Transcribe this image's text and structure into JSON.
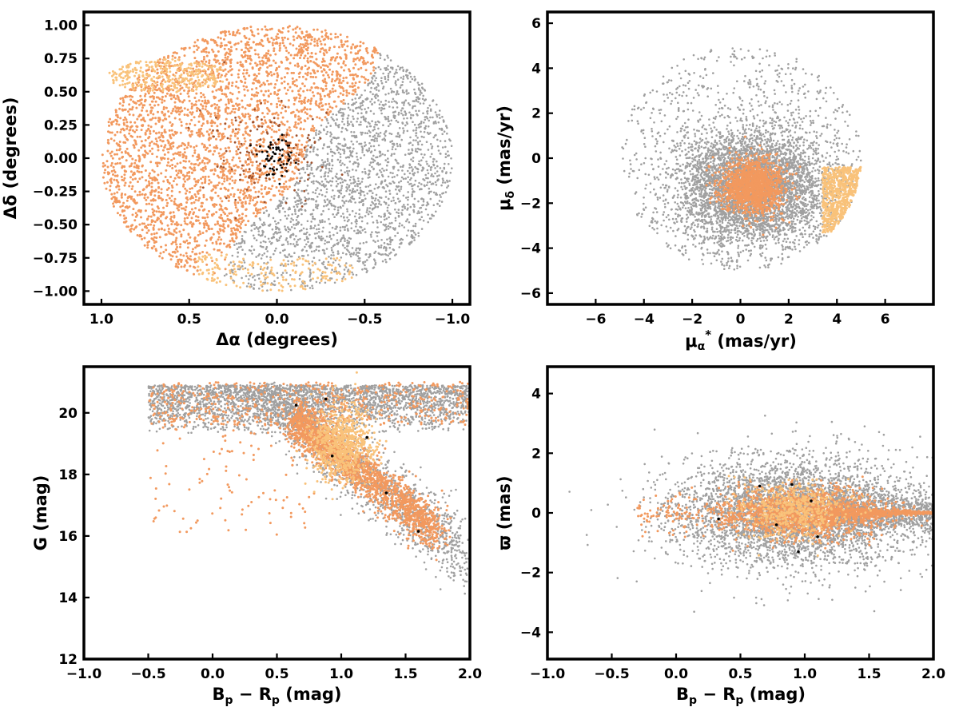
{
  "colors": {
    "field": "#a0a0a0",
    "orange": "#f2995e",
    "light_orange": "#f9c27a",
    "brown": "#a0522d",
    "black": "#000000",
    "frame": "#000000"
  },
  "chart_data": [
    {
      "id": "sky",
      "type": "scatter",
      "xlabel": "Δα (degrees)",
      "ylabel": "Δδ (degrees)",
      "xlim": [
        1.1,
        -1.1
      ],
      "ylim": [
        -1.1,
        1.1
      ],
      "xticks": [
        1.0,
        0.5,
        0.0,
        -0.5,
        -1.0
      ],
      "xtick_labels": [
        "1.0",
        "0.5",
        "0.0",
        "−0.5",
        "−1.0"
      ],
      "yticks": [
        -1.0,
        -0.75,
        -0.5,
        -0.25,
        0.0,
        0.25,
        0.5,
        0.75,
        1.0
      ],
      "ytick_labels": [
        "−1.00",
        "−0.75",
        "−0.50",
        "−0.25",
        "0.00",
        "0.25",
        "0.50",
        "0.75",
        "1.00"
      ],
      "grid": false,
      "field_region": {
        "shape": "ellipse",
        "center": [
          0.0,
          0.0
        ],
        "radius_x": 1.0,
        "radius_y": 1.0
      },
      "groups": [
        {
          "role": "orange",
          "region": "western and southern part of the field",
          "count_hint": "many"
        },
        {
          "role": "light_orange",
          "region": "southern rim near Δδ ≈ −0.9",
          "count_hint": "many"
        },
        {
          "role": "brown",
          "region": "filaments around the centre",
          "count_hint": "few"
        },
        {
          "role": "black",
          "region": "centre, |Δα| < 0.1, |Δδ| < 0.15",
          "count_hint": "~60"
        }
      ]
    },
    {
      "id": "proper-motion",
      "type": "scatter",
      "xlabel": "μα* (mas/yr)",
      "ylabel": "μδ (mas/yr)",
      "xlim": [
        -8,
        8
      ],
      "ylim": [
        -6.5,
        6.5
      ],
      "xticks": [
        -6,
        -4,
        -2,
        0,
        2,
        4,
        6
      ],
      "xtick_labels": [
        "−6",
        "−4",
        "−2",
        "0",
        "2",
        "4",
        "6"
      ],
      "yticks": [
        -6,
        -4,
        -2,
        0,
        2,
        4,
        6
      ],
      "ytick_labels": [
        "−6",
        "−4",
        "−2",
        "0",
        "2",
        "4",
        "6"
      ],
      "grid": false,
      "field_region": {
        "shape": "circle",
        "center": [
          0.0,
          0.0
        ],
        "radius": 5.0
      },
      "groups": [
        {
          "role": "field",
          "center": [
            0.5,
            -1.3
          ],
          "spread": [
            1.5,
            1.3
          ]
        },
        {
          "role": "orange",
          "center": [
            0.5,
            -1.3
          ],
          "spread": [
            0.65,
            0.6
          ]
        },
        {
          "role": "light_orange",
          "region": "right edge, μα* ≈ 4–5, μδ ≈ −3 to −0.5"
        }
      ]
    },
    {
      "id": "cmd",
      "type": "scatter",
      "xlabel": "Bp − Rp (mag)",
      "ylabel": "G (mag)",
      "xlim": [
        -1.0,
        2.0
      ],
      "ylim": [
        12.0,
        21.5
      ],
      "xticks": [
        -1.0,
        -0.5,
        0.0,
        0.5,
        1.0,
        1.5,
        2.0
      ],
      "xtick_labels": [
        "−1.0",
        "−0.5",
        "0.0",
        "0.5",
        "1.0",
        "1.5",
        "2.0"
      ],
      "yticks": [
        12,
        14,
        16,
        18,
        20
      ],
      "ytick_labels": [
        "12",
        "14",
        "16",
        "18",
        "20"
      ],
      "grid": false,
      "groups": [
        {
          "role": "field",
          "region": "faint band G ≈ 19.5–21 plus main sequence"
        },
        {
          "role": "orange",
          "region": "main sequence from (0.6, 19.8) to (1.7, 16.3)"
        },
        {
          "role": "light_orange",
          "region": "clump near Bp−Rp ≈ 1.0, G ≈ 19"
        },
        {
          "role": "black",
          "points": [
            [
              0.65,
              20.25
            ],
            [
              0.88,
              20.45
            ],
            [
              0.93,
              18.6
            ],
            [
              1.35,
              17.4
            ],
            [
              1.6,
              16.15
            ],
            [
              1.2,
              19.2
            ]
          ]
        }
      ]
    },
    {
      "id": "parallax",
      "type": "scatter",
      "xlabel": "Bp − Rp (mag)",
      "ylabel": "ϖ (mas)",
      "xlim": [
        -1.0,
        2.0
      ],
      "ylim": [
        -4.9,
        4.9
      ],
      "xticks": [
        -1.0,
        -0.5,
        0.0,
        0.5,
        1.0,
        1.5,
        2.0
      ],
      "xtick_labels": [
        "−1.0",
        "−0.5",
        "0.0",
        "0.5",
        "1.0",
        "1.5",
        "2.0"
      ],
      "yticks": [
        -4,
        -2,
        0,
        2,
        4
      ],
      "ytick_labels": [
        "−4",
        "−2",
        "0",
        "2",
        "4"
      ],
      "grid": false,
      "groups": [
        {
          "role": "field",
          "center": [
            0.9,
            0.0
          ],
          "spread": [
            0.45,
            0.9
          ]
        },
        {
          "role": "orange",
          "center": [
            1.0,
            0.0
          ],
          "spread": [
            0.3,
            0.4
          ]
        },
        {
          "role": "light_orange",
          "center": [
            0.9,
            0.1
          ],
          "spread": [
            0.2,
            0.45
          ]
        },
        {
          "role": "black",
          "points": [
            [
              0.65,
              0.9
            ],
            [
              0.9,
              0.95
            ],
            [
              0.33,
              -0.2
            ],
            [
              0.78,
              -0.4
            ],
            [
              0.95,
              -1.3
            ],
            [
              1.1,
              -0.8
            ],
            [
              1.05,
              0.4
            ]
          ]
        }
      ]
    }
  ]
}
